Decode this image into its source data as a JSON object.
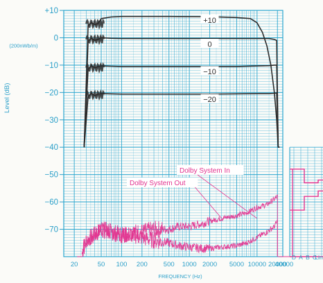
{
  "colors": {
    "grid": "#2aa6cf",
    "axis_text": "#2a9fc9",
    "response_curve": "#2b2b2b",
    "noise": "#e2338f",
    "callout_bg": "#ffffff",
    "paper": "#fbfbf8"
  },
  "chart_data": [
    {
      "type": "line",
      "description_of_content": "Frequency response at four record levels",
      "title": "",
      "xlabel": "FREQUENCY (Hz)",
      "ylabel": "Level (dB)",
      "ylabel_unit": "(200nWb/m)",
      "x_scale": "log",
      "xlim": [
        14,
        24000
      ],
      "ylim": [
        -80,
        10
      ],
      "grid": true,
      "x_ticks": [
        {
          "value": 20,
          "label": "20"
        },
        {
          "value": 50,
          "label": "50"
        },
        {
          "value": 100,
          "label": "100"
        },
        {
          "value": 200,
          "label": "200"
        },
        {
          "value": 500,
          "label": "500"
        },
        {
          "value": 1000,
          "label": "1000"
        },
        {
          "value": 2000,
          "label": "2000"
        },
        {
          "value": 5000,
          "label": "5000"
        },
        {
          "value": 10000,
          "label": "10000"
        },
        {
          "value": 20000,
          "label": "20000"
        }
      ],
      "y_ticks": [
        {
          "value": 10,
          "label": "+10"
        },
        {
          "value": 0,
          "label": "0"
        },
        {
          "value": -10,
          "label": "−10"
        },
        {
          "value": -20,
          "label": "−20"
        },
        {
          "value": -30,
          "label": "−30"
        },
        {
          "value": -40,
          "label": "−40"
        },
        {
          "value": -50,
          "label": "−50"
        },
        {
          "value": -60,
          "label": "−60"
        },
        {
          "value": -70,
          "label": "−70"
        }
      ],
      "series": [
        {
          "name": "+10",
          "label_at": [
            2000,
            6.5
          ],
          "x": [
            28,
            32,
            36,
            40,
            45,
            50,
            70,
            100,
            500,
            2000,
            5000,
            8000,
            10000,
            12000,
            14000,
            16000,
            18000,
            19500,
            20500,
            21500
          ],
          "y": [
            -40,
            4.5,
            5.5,
            4.8,
            5.2,
            7.0,
            7.6,
            7.8,
            7.8,
            7.7,
            7.4,
            7.0,
            5.5,
            2.0,
            -3.0,
            -10.0,
            -20.0,
            -30.0,
            -40.0,
            -40.0
          ]
        },
        {
          "name": "0",
          "label_at": [
            2000,
            -2.3
          ],
          "x": [
            28,
            32,
            36,
            40,
            45,
            50,
            70,
            100,
            500,
            2000,
            5000,
            10000,
            15000,
            18000,
            19500,
            20500,
            21500
          ],
          "y": [
            -40,
            -1.2,
            -0.2,
            -1.0,
            -0.6,
            0.0,
            -0.2,
            -0.3,
            -0.3,
            -0.3,
            -0.3,
            -0.3,
            -0.3,
            -0.6,
            -1.0,
            -40.0,
            -40.0
          ]
        },
        {
          "name": "−10",
          "label_at": [
            2000,
            -12.3
          ],
          "x": [
            28,
            32,
            36,
            40,
            45,
            50,
            70,
            100,
            500,
            2000,
            5000,
            10000,
            15000,
            18000,
            19500,
            20500
          ],
          "y": [
            -40,
            -11.5,
            -10.2,
            -11.0,
            -10.5,
            -10.3,
            -10.4,
            -10.5,
            -10.5,
            -10.5,
            -10.5,
            -10.3,
            -10.2,
            -10.0,
            -10.0,
            -40.0
          ]
        },
        {
          "name": "−20",
          "label_at": [
            2000,
            -22.5
          ],
          "x": [
            28,
            32,
            36,
            40,
            45,
            50,
            70,
            100,
            500,
            2000,
            5000,
            10000,
            15000,
            18000,
            19500,
            20500
          ],
          "y": [
            -40,
            -21.5,
            -20.3,
            -21.2,
            -20.6,
            -20.4,
            -20.5,
            -20.6,
            -20.6,
            -20.6,
            -20.5,
            -20.4,
            -20.4,
            -20.3,
            -20.2,
            -40.0
          ]
        }
      ]
    },
    {
      "type": "line",
      "description_of_content": "Noise spectrum",
      "x_scale": "log",
      "series": [
        {
          "name": "Dolby System Out",
          "x": [
            26,
            30,
            40,
            50,
            70,
            100,
            150,
            200,
            300,
            500,
            700,
            1000,
            1500,
            2000,
            3000,
            5000,
            7000,
            10000,
            14000,
            18000,
            20000
          ],
          "y": [
            -79,
            -74,
            -72,
            -70,
            -71,
            -72,
            -71,
            -71,
            -70,
            -70,
            -69,
            -69,
            -68,
            -67,
            -66,
            -65,
            -64,
            -62,
            -61,
            -59,
            -58
          ]
        },
        {
          "name": "Dolby System In",
          "x": [
            26,
            30,
            40,
            50,
            70,
            100,
            150,
            200,
            300,
            500,
            700,
            1000,
            1500,
            2000,
            3000,
            5000,
            7000,
            10000,
            14000,
            18000,
            20000
          ],
          "y": [
            -79,
            -74,
            -72,
            -70,
            -71,
            -72,
            -72,
            -73,
            -74,
            -75,
            -76,
            -76.5,
            -77,
            -77,
            -76.5,
            -76,
            -75,
            -73,
            -71,
            -69,
            -67
          ]
        }
      ],
      "annotations": [
        {
          "text": "Dolby System In",
          "points_to": [
            10000,
            -66
          ]
        },
        {
          "text": "Dolby System Out",
          "points_to": [
            3000,
            -66
          ]
        }
      ]
    },
    {
      "type": "line",
      "description_of_content": "Weighted noise levels (inset, right)",
      "categories": [
        "D",
        "A",
        "B",
        "C",
        "Lin"
      ],
      "x_label_extra": "40000",
      "series": [
        {
          "values": [
            -48,
            -48,
            -53,
            -53,
            -52
          ]
        },
        {
          "values": [
            -63,
            -63,
            -58,
            -58,
            -56
          ]
        },
        {
          "values": [
            -80,
            -80,
            -80,
            -80,
            -80
          ]
        }
      ]
    }
  ]
}
